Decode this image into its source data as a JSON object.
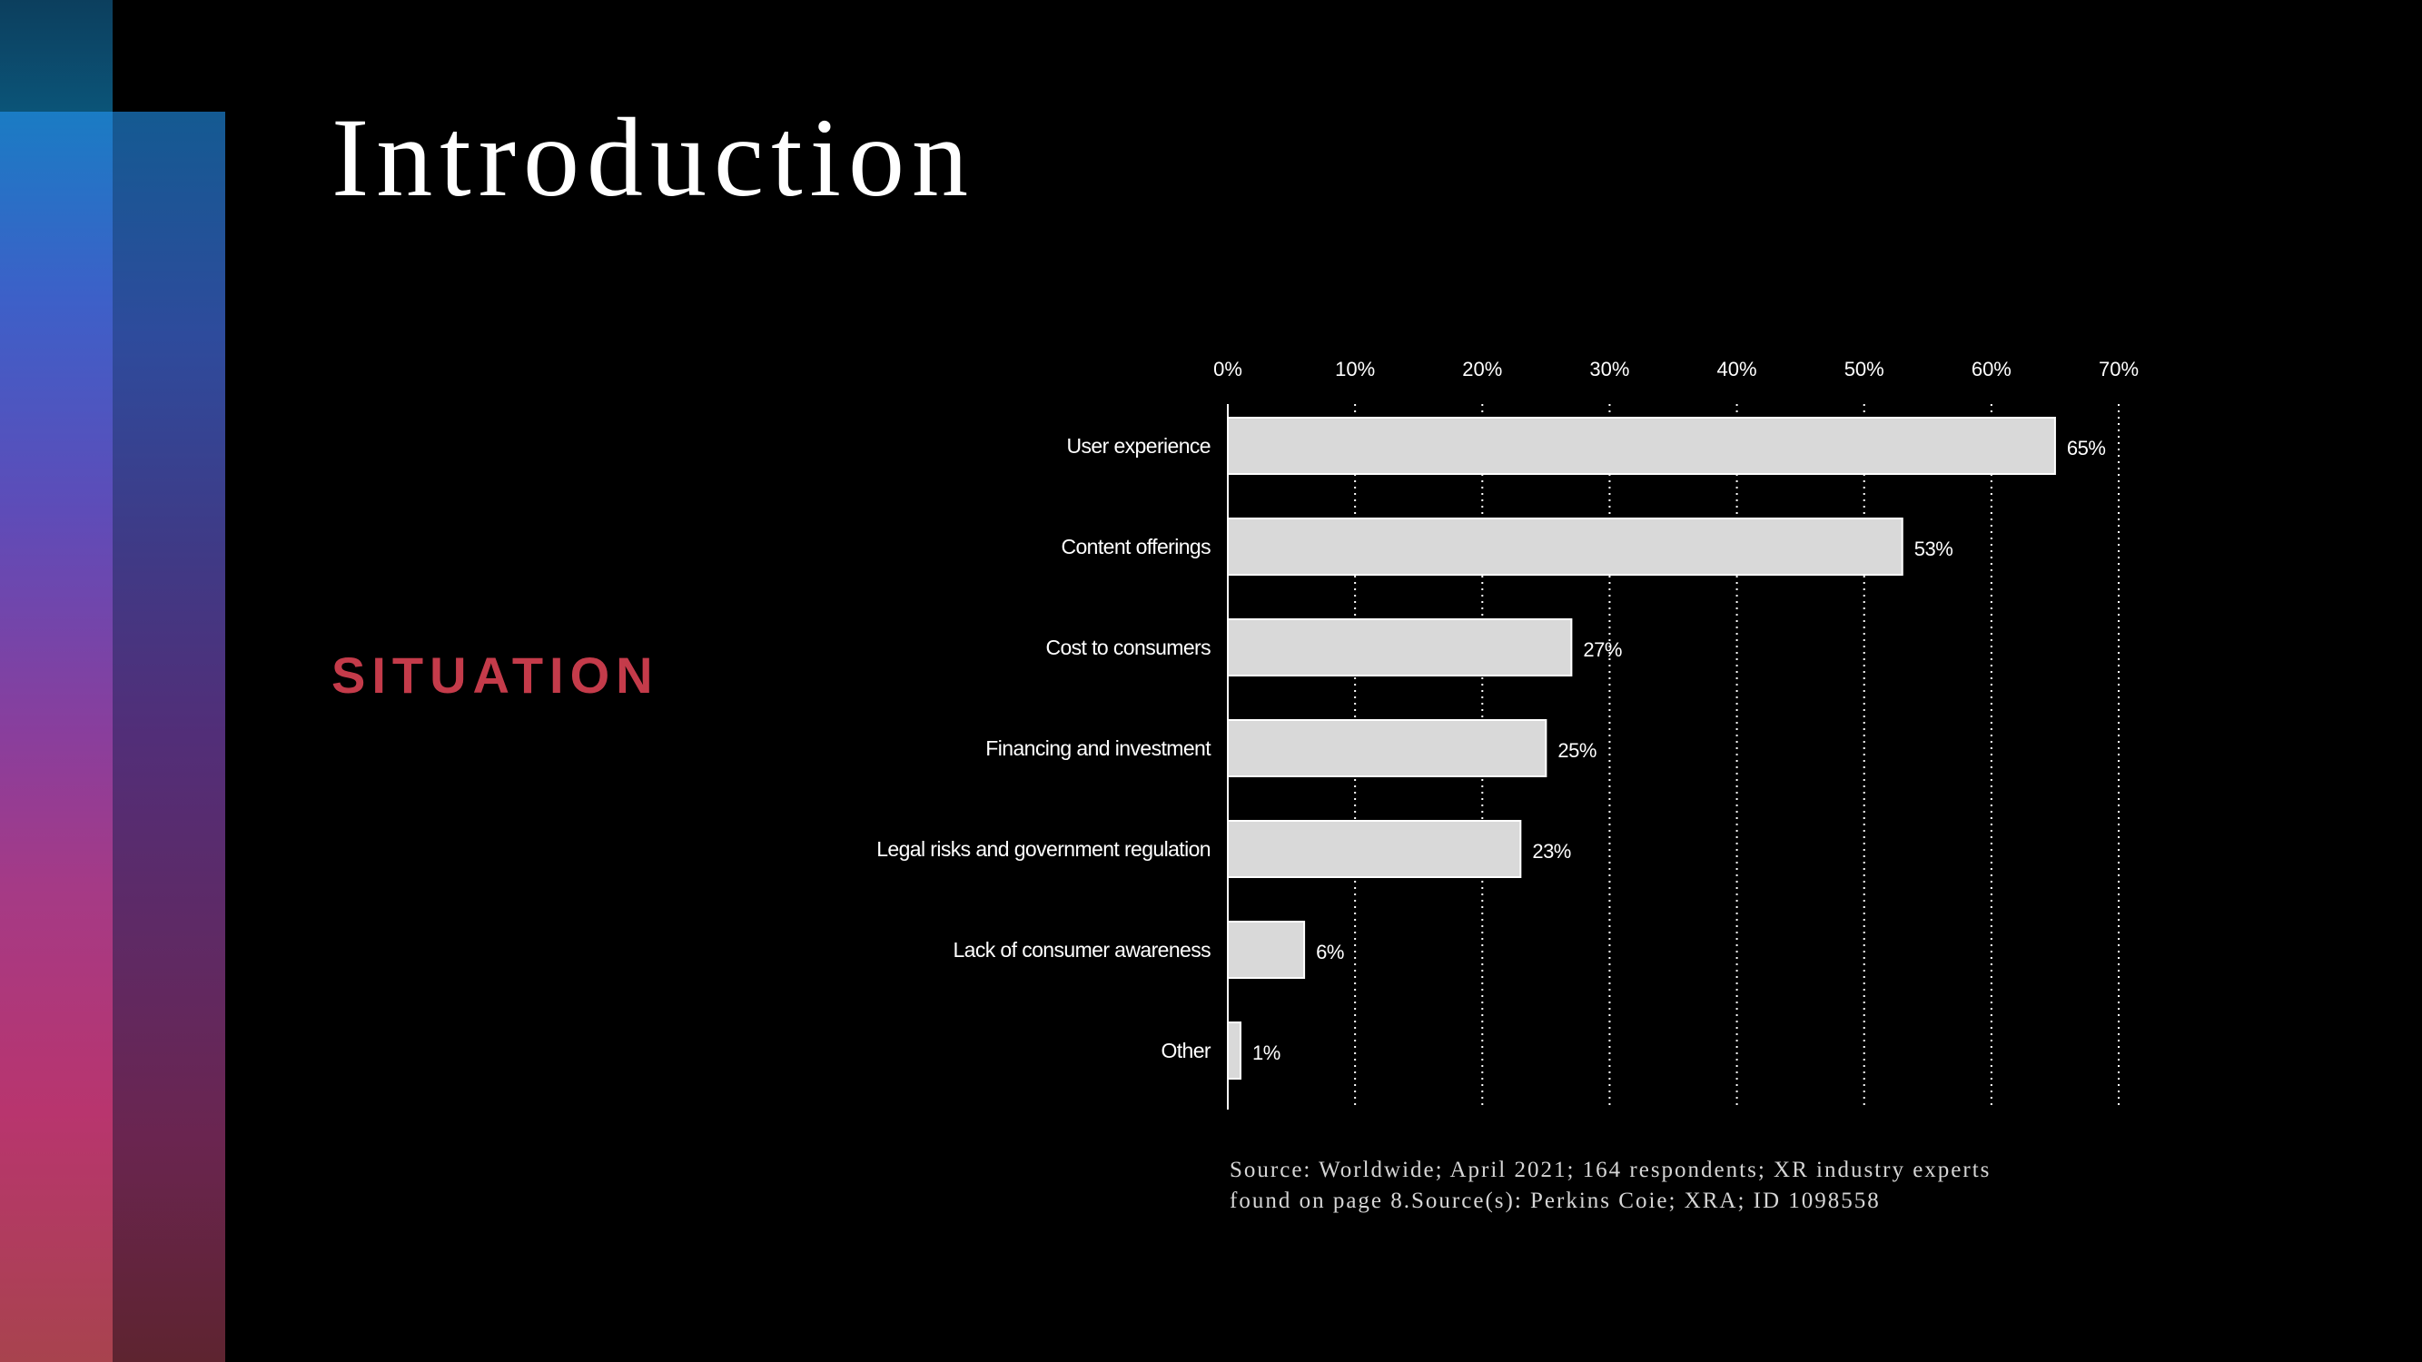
{
  "slide": {
    "title": "Introduction",
    "section_label": "SITUATION",
    "source_line1": "Source:  Worldwide; April 2021; 164 respondents; XR industry experts",
    "source_line2": "found on page 8.Source(s): Perkins Coie; XRA; ID 1098558"
  },
  "colors": {
    "background": "#000000",
    "bar_fill": "#d9d9d9",
    "section_label": "#c43b4a",
    "text": "#ffffff"
  },
  "chart_data": {
    "type": "bar",
    "orientation": "horizontal",
    "categories": [
      "User experience",
      "Content offerings",
      "Cost to consumers",
      "Financing and investment",
      "Legal risks and government regulation",
      "Lack of consumer awareness",
      "Other"
    ],
    "values": [
      65,
      53,
      27,
      25,
      23,
      6,
      1
    ],
    "value_labels": [
      "65%",
      "53%",
      "27%",
      "25%",
      "23%",
      "6%",
      "1%"
    ],
    "xlim": [
      0,
      70
    ],
    "ticks": [
      0,
      10,
      20,
      30,
      40,
      50,
      60,
      70
    ],
    "tick_labels": [
      "0%",
      "10%",
      "20%",
      "30%",
      "40%",
      "50%",
      "60%",
      "70%"
    ],
    "axis_position": "top",
    "grid": "vertical dotted",
    "legend": "none",
    "title": "",
    "xlabel": "",
    "ylabel": ""
  }
}
